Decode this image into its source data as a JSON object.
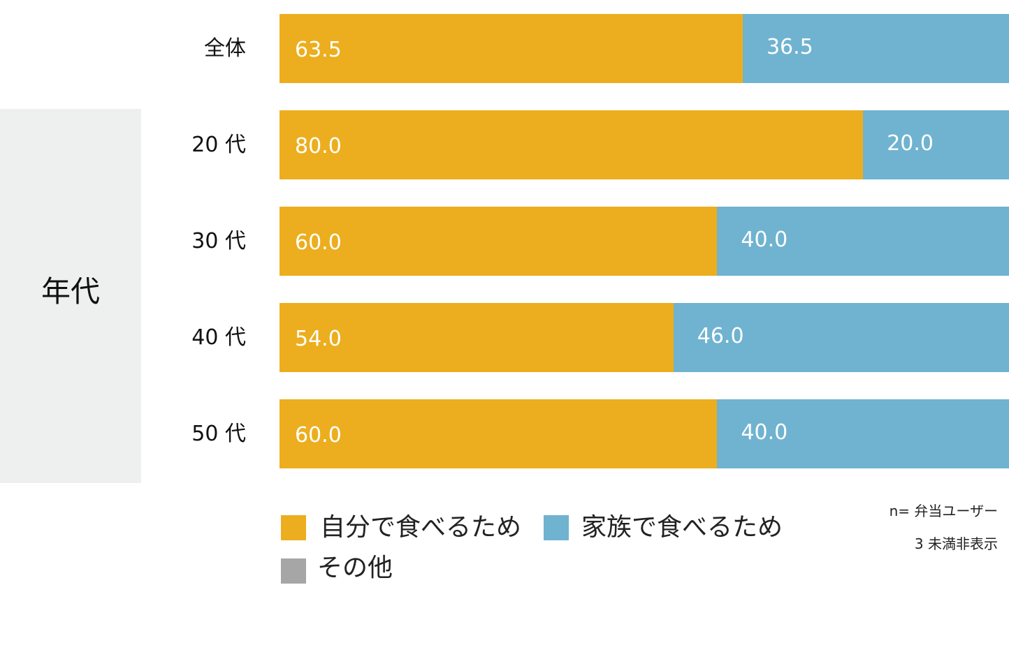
{
  "chart_data": {
    "type": "bar",
    "orientation": "horizontal",
    "stacked": true,
    "percent": true,
    "categories": [
      "全体",
      "20 代",
      "30 代",
      "40 代",
      "50 代"
    ],
    "group_label": "年代",
    "group_members": [
      "20 代",
      "30 代",
      "40 代",
      "50 代"
    ],
    "series": [
      {
        "name": "自分で食べるため",
        "color": "#ecae1e",
        "values": [
          63.5,
          80.0,
          60.0,
          54.0,
          60.0
        ]
      },
      {
        "name": "家族で食べるため",
        "color": "#6fb3d0",
        "values": [
          36.5,
          20.0,
          40.0,
          46.0,
          40.0
        ]
      },
      {
        "name": "その他",
        "color": "#a6a6a6",
        "values": [
          0,
          0,
          0,
          0,
          0
        ]
      }
    ],
    "value_labels": [
      [
        "63.5",
        "36.5"
      ],
      [
        "80.0",
        "20.0"
      ],
      [
        "60.0",
        "40.0"
      ],
      [
        "54.0",
        "46.0"
      ],
      [
        "60.0",
        "40.0"
      ]
    ],
    "xlim": [
      0,
      100
    ],
    "grid": false,
    "legend_position": "bottom",
    "notes": [
      "n= 弁当ユーザー",
      "3 未満非表示"
    ]
  }
}
